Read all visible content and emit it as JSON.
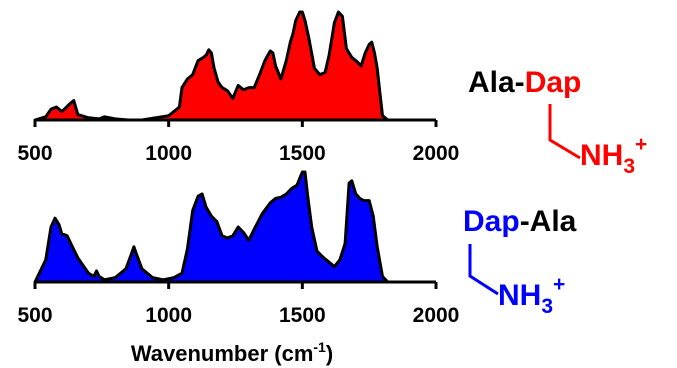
{
  "chart_data": [
    {
      "type": "area",
      "title": "",
      "xlabel": "",
      "ylabel": "",
      "xlim": [
        500,
        2000
      ],
      "grid": false,
      "color": "#ff0000",
      "x_ticks": [
        "500",
        "1000",
        "1500",
        "2000"
      ],
      "x": [
        500,
        540,
        560,
        580,
        600,
        610,
        630,
        645,
        660,
        700,
        740,
        760,
        800,
        850,
        900,
        950,
        1000,
        1020,
        1040,
        1050,
        1070,
        1090,
        1110,
        1130,
        1140,
        1150,
        1160,
        1170,
        1185,
        1200,
        1220,
        1240,
        1260,
        1280,
        1300,
        1320,
        1340,
        1360,
        1380,
        1390,
        1400,
        1420,
        1440,
        1455,
        1465,
        1475,
        1490,
        1500,
        1510,
        1525,
        1545,
        1565,
        1585,
        1600,
        1620,
        1635,
        1650,
        1665,
        1685,
        1705,
        1720,
        1735,
        1750,
        1760,
        1770,
        1780,
        1790,
        1800,
        1820
      ],
      "y": [
        0,
        0.03,
        0.1,
        0.12,
        0.08,
        0.1,
        0.15,
        0.18,
        0.05,
        0.02,
        0.01,
        0.03,
        0.01,
        0,
        0,
        0.02,
        0.04,
        0.08,
        0.12,
        0.3,
        0.38,
        0.42,
        0.55,
        0.58,
        0.6,
        0.65,
        0.62,
        0.48,
        0.35,
        0.3,
        0.27,
        0.2,
        0.32,
        0.28,
        0.3,
        0.3,
        0.42,
        0.55,
        0.64,
        0.62,
        0.5,
        0.38,
        0.55,
        0.72,
        0.8,
        0.92,
        1.0,
        1.0,
        0.92,
        0.75,
        0.48,
        0.42,
        0.44,
        0.6,
        0.9,
        1.0,
        0.96,
        0.66,
        0.58,
        0.54,
        0.5,
        0.62,
        0.7,
        0.72,
        0.62,
        0.48,
        0.25,
        0.04,
        0
      ]
    },
    {
      "type": "area",
      "title": "",
      "xlabel": "Wavenumber (cm-1)",
      "ylabel": "",
      "xlim": [
        500,
        2000
      ],
      "grid": false,
      "color": "#0000ff",
      "x_ticks": [
        "500",
        "1000",
        "1500",
        "2000"
      ],
      "x": [
        500,
        540,
        560,
        575,
        590,
        600,
        620,
        640,
        660,
        680,
        700,
        720,
        730,
        740,
        760,
        800,
        840,
        860,
        870,
        880,
        900,
        940,
        980,
        1020,
        1050,
        1070,
        1090,
        1110,
        1125,
        1140,
        1160,
        1180,
        1200,
        1220,
        1240,
        1260,
        1280,
        1300,
        1320,
        1350,
        1380,
        1400,
        1420,
        1440,
        1460,
        1480,
        1500,
        1510,
        1520,
        1535,
        1555,
        1580,
        1600,
        1620,
        1640,
        1660,
        1675,
        1685,
        1700,
        1715,
        1730,
        1750,
        1765,
        1780,
        1800,
        1820
      ],
      "y": [
        0,
        0.2,
        0.5,
        0.58,
        0.52,
        0.44,
        0.42,
        0.32,
        0.22,
        0.15,
        0.08,
        0.05,
        0.1,
        0.05,
        0.02,
        0.04,
        0.12,
        0.25,
        0.32,
        0.25,
        0.12,
        0.04,
        0.02,
        0.04,
        0.08,
        0.3,
        0.65,
        0.78,
        0.8,
        0.68,
        0.6,
        0.55,
        0.42,
        0.4,
        0.42,
        0.5,
        0.45,
        0.38,
        0.48,
        0.62,
        0.72,
        0.76,
        0.77,
        0.8,
        0.85,
        0.88,
        1.0,
        1.0,
        0.78,
        0.5,
        0.28,
        0.22,
        0.18,
        0.14,
        0.2,
        0.35,
        0.9,
        0.92,
        0.8,
        0.76,
        0.74,
        0.74,
        0.6,
        0.32,
        0.05,
        0
      ]
    }
  ],
  "molecules": {
    "top": {
      "prefix": "Ala-",
      "name": "Dap",
      "nh": "NH",
      "sub": "3",
      "sup": "+",
      "color": "#ff0000"
    },
    "bottom": {
      "name": "Dap",
      "suffix": "-Ala",
      "nh": "NH",
      "sub": "3",
      "sup": "+",
      "color": "#0000ff"
    }
  }
}
